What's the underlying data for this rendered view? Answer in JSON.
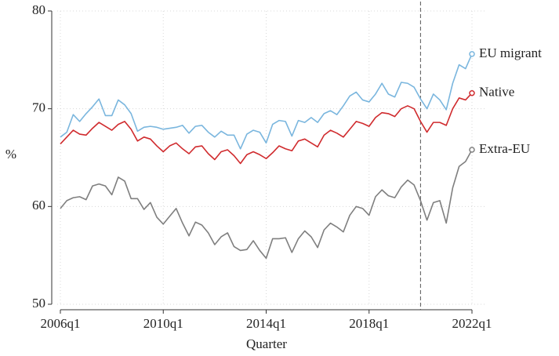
{
  "chart_data": {
    "type": "line",
    "x_label": "Quarter",
    "y_label": "%",
    "categories": [
      "2006q1",
      null,
      null,
      null,
      null,
      null,
      null,
      null,
      null,
      null,
      null,
      null,
      null,
      null,
      null,
      null,
      "2010q1",
      null,
      null,
      null,
      null,
      null,
      null,
      null,
      null,
      null,
      null,
      null,
      null,
      null,
      null,
      null,
      "2014q1",
      null,
      null,
      null,
      null,
      null,
      null,
      null,
      null,
      null,
      null,
      null,
      null,
      null,
      null,
      null,
      "2018q1",
      null,
      null,
      null,
      null,
      null,
      null,
      null,
      null,
      null,
      null,
      null,
      null,
      null,
      null,
      null,
      "2022q1"
    ],
    "ylim": [
      50,
      80
    ],
    "yticks": [
      50,
      60,
      70,
      80
    ],
    "grid": true,
    "reference_line": {
      "category_index": 56,
      "style": "dashed"
    },
    "series": [
      {
        "name": "EU migrant",
        "color": "#7ab6de",
        "values": [
          67.1,
          67.6,
          69.4,
          68.7,
          69.5,
          70.2,
          71.0,
          69.3,
          69.3,
          70.9,
          70.4,
          69.5,
          67.7,
          68.1,
          68.2,
          68.1,
          67.9,
          68.0,
          68.1,
          68.3,
          67.5,
          68.2,
          68.3,
          67.6,
          67.1,
          67.7,
          67.3,
          67.3,
          65.9,
          67.4,
          67.8,
          67.6,
          66.5,
          68.4,
          68.8,
          68.7,
          67.2,
          68.8,
          68.6,
          69.1,
          68.6,
          69.5,
          69.8,
          69.4,
          70.3,
          71.3,
          71.7,
          70.9,
          70.7,
          71.5,
          72.6,
          71.5,
          71.2,
          72.7,
          72.6,
          72.2,
          71.0,
          70.0,
          71.5,
          70.9,
          69.9,
          72.6,
          74.5,
          74.1,
          75.6
        ]
      },
      {
        "name": "Native",
        "color": "#d02b2e",
        "values": [
          66.4,
          67.1,
          67.8,
          67.4,
          67.3,
          68.0,
          68.6,
          68.2,
          67.8,
          68.4,
          68.7,
          67.9,
          66.7,
          67.1,
          66.9,
          66.2,
          65.6,
          66.2,
          66.5,
          65.9,
          65.4,
          66.1,
          66.2,
          65.4,
          64.8,
          65.6,
          65.8,
          65.2,
          64.4,
          65.3,
          65.6,
          65.3,
          64.9,
          65.5,
          66.2,
          65.9,
          65.7,
          66.7,
          66.9,
          66.5,
          66.1,
          67.3,
          67.8,
          67.5,
          67.1,
          67.9,
          68.7,
          68.5,
          68.2,
          69.1,
          69.6,
          69.5,
          69.2,
          70.0,
          70.3,
          70.0,
          68.7,
          67.6,
          68.6,
          68.6,
          68.3,
          70.0,
          71.1,
          70.9,
          71.6
        ]
      },
      {
        "name": "Extra-EU",
        "color": "#7f7f7f",
        "values": [
          59.8,
          60.6,
          60.9,
          61.0,
          60.7,
          62.1,
          62.3,
          62.1,
          61.2,
          63.0,
          62.6,
          60.8,
          60.8,
          59.7,
          60.4,
          58.9,
          58.2,
          59.0,
          59.8,
          58.3,
          57.0,
          58.4,
          58.1,
          57.3,
          56.1,
          56.9,
          57.3,
          55.9,
          55.5,
          55.6,
          56.5,
          55.5,
          54.7,
          56.7,
          56.7,
          56.8,
          55.3,
          56.7,
          57.5,
          56.9,
          55.8,
          57.6,
          58.3,
          57.9,
          57.4,
          59.1,
          60.0,
          59.8,
          59.1,
          61.0,
          61.7,
          61.1,
          60.9,
          62.0,
          62.7,
          62.2,
          60.6,
          58.6,
          60.4,
          60.6,
          58.3,
          61.9,
          64.1,
          64.6,
          65.8
        ]
      }
    ]
  }
}
